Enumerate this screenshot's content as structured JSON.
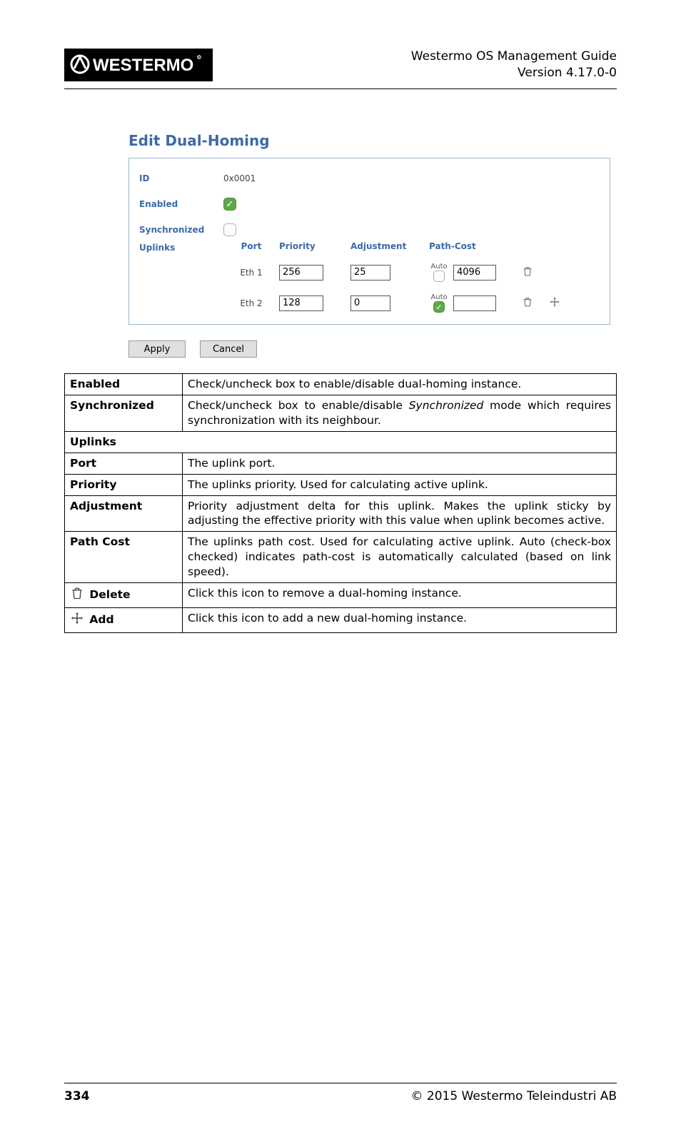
{
  "doc": {
    "title_line1": "Westermo OS Management Guide",
    "title_line2": "Version 4.17.0-0",
    "page_number": "334",
    "copyright": "© 2015 Westermo Teleindustri AB"
  },
  "colors": {
    "brand_blue": "#3d6aa8",
    "card_border": "#9bb6cb",
    "chk_on_bg": "#5fa84b",
    "chk_on_border": "#4a8a3a",
    "btn_bg": "#e0e0e0",
    "btn_border": "#999999"
  },
  "section": {
    "title": "Edit Dual-Homing"
  },
  "form": {
    "id_label": "ID",
    "id_value": "0x0001",
    "enabled_label": "Enabled",
    "enabled_checked": true,
    "sync_label": "Synchronized",
    "sync_checked": false,
    "uplinks_label": "Uplinks",
    "headers": {
      "port": "Port",
      "priority": "Priority",
      "adjustment": "Adjustment",
      "pathcost": "Path-Cost"
    },
    "auto_label": "Auto",
    "rows": [
      {
        "port": "Eth 1",
        "priority": "256",
        "adjustment": "25",
        "auto_checked": false,
        "pathcost": "4096",
        "show_delete": true,
        "show_add": false
      },
      {
        "port": "Eth 2",
        "priority": "128",
        "adjustment": "0",
        "auto_checked": true,
        "pathcost": "",
        "show_delete": true,
        "show_add": true
      }
    ]
  },
  "buttons": {
    "apply": "Apply",
    "cancel": "Cancel"
  },
  "desc": {
    "enabled_k": "Enabled",
    "enabled_v": "Check/uncheck box to enable/disable dual-homing instance.",
    "sync_k": "Synchronized",
    "sync_v1": "Check/uncheck box to enable/disable ",
    "sync_v_em": "Synchronized",
    "sync_v2": " mode which requires synchronization with its neighbour.",
    "uplinks_k": "Uplinks",
    "port_k": "Port",
    "port_v": "The uplink port.",
    "priority_k": "Priority",
    "priority_v": "The uplinks priority. Used for calculating active uplink.",
    "adj_k": "Adjustment",
    "adj_v": "Priority adjustment delta for this uplink. Makes the uplink sticky by adjusting the effective priority with this value when uplink becomes active.",
    "pc_k": "Path Cost",
    "pc_v": "The uplinks path cost. Used for calculating active uplink. Auto (check-box checked) indicates path-cost is automatically calculated (based on link speed).",
    "del_k": " Delete",
    "del_v": "Click this icon to remove a dual-homing instance.",
    "add_k": " Add",
    "add_v": "Click this icon to add a new dual-homing instance."
  }
}
